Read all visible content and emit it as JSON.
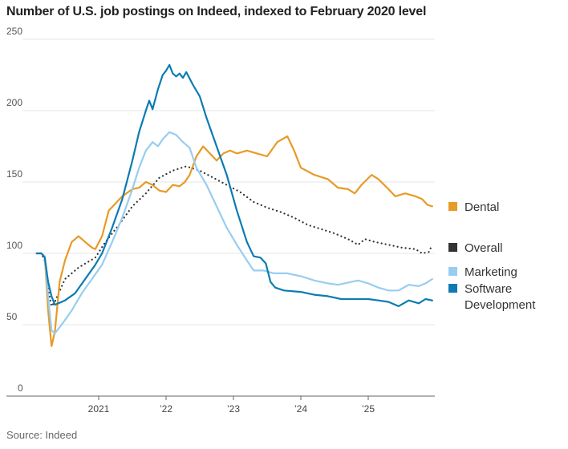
{
  "chart_data": {
    "type": "line",
    "title": "Number of U.S. job postings on Indeed, indexed to February 2020 level",
    "source": "Source: Indeed",
    "xlabel": "",
    "ylabel": "",
    "xlim": [
      2020.0,
      2026.0
    ],
    "ylim": [
      0,
      250
    ],
    "yticks": [
      0,
      50,
      100,
      150,
      200,
      250
    ],
    "ytick_labels": [
      "0",
      "50",
      "100",
      "150",
      "200",
      "250"
    ],
    "xticks": [
      2021,
      2022,
      2023,
      2024,
      2025
    ],
    "xtick_labels": [
      "2021",
      "’22",
      "’23",
      "’24",
      "’25"
    ],
    "grid": "horizontal",
    "legend_placement": "right, labels at line ends",
    "series": [
      {
        "name": "Dental",
        "color": "#e89a26",
        "style": "solid",
        "x": [
          2020.08,
          2020.15,
          2020.2,
          2020.25,
          2020.3,
          2020.35,
          2020.42,
          2020.5,
          2020.6,
          2020.7,
          2020.8,
          2020.9,
          2020.95,
          2021.05,
          2021.15,
          2021.25,
          2021.35,
          2021.5,
          2021.6,
          2021.7,
          2021.8,
          2021.9,
          2022.0,
          2022.1,
          2022.2,
          2022.28,
          2022.35,
          2022.45,
          2022.55,
          2022.65,
          2022.75,
          2022.85,
          2022.95,
          2023.05,
          2023.2,
          2023.35,
          2023.5,
          2023.65,
          2023.8,
          2023.9,
          2024.0,
          2024.2,
          2024.4,
          2024.55,
          2024.7,
          2024.8,
          2024.9,
          2025.05,
          2025.15,
          2025.3,
          2025.4,
          2025.55,
          2025.7,
          2025.8,
          2025.88,
          2025.95
        ],
        "values": [
          100,
          100,
          98,
          60,
          35,
          45,
          80,
          95,
          108,
          112,
          108,
          104,
          103,
          112,
          130,
          135,
          140,
          145,
          146,
          150,
          148,
          144,
          143,
          148,
          147,
          150,
          155,
          168,
          175,
          170,
          165,
          170,
          172,
          170,
          172,
          170,
          168,
          178,
          182,
          172,
          160,
          155,
          152,
          146,
          145,
          142,
          148,
          155,
          152,
          145,
          140,
          142,
          140,
          138,
          134,
          133
        ]
      },
      {
        "name": "Overall",
        "color": "#333333",
        "style": "dotted",
        "x": [
          2020.08,
          2020.15,
          2020.2,
          2020.25,
          2020.3,
          2020.35,
          2020.5,
          2020.7,
          2020.95,
          2021.1,
          2021.3,
          2021.5,
          2021.7,
          2021.9,
          2022.1,
          2022.3,
          2022.5,
          2022.7,
          2022.9,
          2023.1,
          2023.3,
          2023.5,
          2023.7,
          2023.9,
          2024.1,
          2024.3,
          2024.5,
          2024.7,
          2024.85,
          2024.95,
          2025.1,
          2025.3,
          2025.5,
          2025.7,
          2025.8,
          2025.9,
          2025.95
        ],
        "values": [
          100,
          100,
          95,
          75,
          63,
          66,
          82,
          90,
          97,
          108,
          120,
          133,
          142,
          153,
          158,
          161,
          158,
          153,
          148,
          143,
          136,
          132,
          129,
          125,
          120,
          117,
          114,
          110,
          106,
          110,
          108,
          106,
          104,
          103,
          100,
          101,
          106
        ]
      },
      {
        "name": "Marketing",
        "color": "#98cdf0",
        "style": "solid",
        "x": [
          2020.08,
          2020.15,
          2020.2,
          2020.25,
          2020.3,
          2020.35,
          2020.45,
          2020.6,
          2020.75,
          2020.9,
          2021.05,
          2021.2,
          2021.35,
          2021.5,
          2021.6,
          2021.7,
          2021.8,
          2021.88,
          2021.95,
          2022.05,
          2022.15,
          2022.25,
          2022.35,
          2022.45,
          2022.6,
          2022.75,
          2022.9,
          2023.05,
          2023.2,
          2023.3,
          2023.45,
          2023.6,
          2023.8,
          2024.0,
          2024.2,
          2024.4,
          2024.55,
          2024.75,
          2024.85,
          2025.0,
          2025.15,
          2025.3,
          2025.45,
          2025.6,
          2025.75,
          2025.85,
          2025.95
        ],
        "values": [
          100,
          100,
          98,
          70,
          46,
          44,
          50,
          60,
          72,
          82,
          92,
          108,
          125,
          145,
          160,
          172,
          178,
          175,
          180,
          185,
          183,
          178,
          174,
          160,
          148,
          133,
          118,
          106,
          95,
          88,
          88,
          86,
          86,
          84,
          81,
          79,
          78,
          80,
          81,
          79,
          76,
          74,
          74,
          78,
          77,
          79,
          82
        ]
      },
      {
        "name": "Software Development",
        "color": "#0c7bb3",
        "style": "solid",
        "x": [
          2020.08,
          2020.15,
          2020.2,
          2020.25,
          2020.3,
          2020.35,
          2020.5,
          2020.65,
          2020.8,
          2020.95,
          2021.05,
          2021.2,
          2021.35,
          2021.5,
          2021.6,
          2021.7,
          2021.75,
          2021.8,
          2021.88,
          2021.95,
          2022.0,
          2022.05,
          2022.1,
          2022.15,
          2022.2,
          2022.25,
          2022.3,
          2022.4,
          2022.5,
          2022.6,
          2022.75,
          2022.9,
          2023.05,
          2023.2,
          2023.3,
          2023.4,
          2023.48,
          2023.55,
          2023.62,
          2023.75,
          2024.0,
          2024.2,
          2024.4,
          2024.6,
          2024.8,
          2025.0,
          2025.15,
          2025.3,
          2025.45,
          2025.6,
          2025.75,
          2025.85,
          2025.95
        ],
        "values": [
          100,
          100,
          97,
          80,
          70,
          64,
          67,
          72,
          82,
          92,
          100,
          118,
          138,
          165,
          185,
          200,
          207,
          201,
          215,
          225,
          228,
          232,
          226,
          224,
          226,
          223,
          227,
          218,
          210,
          195,
          175,
          155,
          130,
          108,
          98,
          97,
          93,
          80,
          76,
          74,
          73,
          71,
          70,
          68,
          68,
          68,
          67,
          66,
          63,
          67,
          65,
          68,
          67
        ]
      }
    ]
  }
}
